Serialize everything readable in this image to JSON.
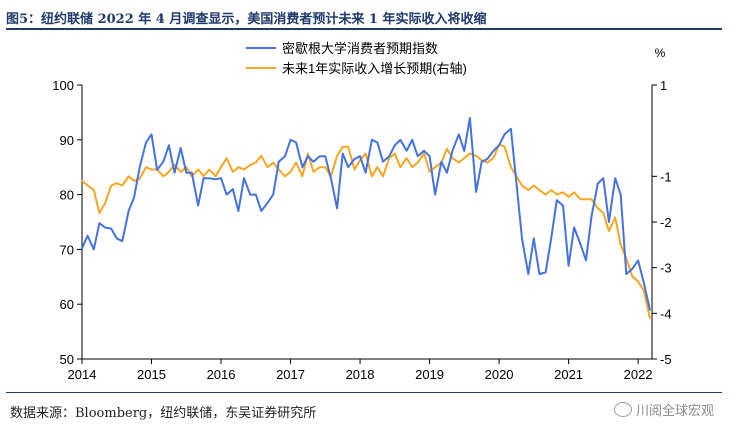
{
  "title": "图5：纽约联储 2022 年 4 月调查显示，美国消费者预计未来 1 年实际收入将收缩",
  "source": "数据来源：Bloomberg，纽约联储，东吴证券研究所",
  "watermark": "川阅全球宏观",
  "watermark_icon": "wechat-icon",
  "colors": {
    "series1": "#4472e0",
    "series2": "#f5a623",
    "title": "#1f3a6b"
  },
  "chart_data": {
    "type": "line",
    "legend_position": "top",
    "grid": false,
    "x_tick_labels": [
      "2014",
      "2015",
      "2016",
      "2017",
      "2018",
      "2019",
      "2020",
      "2021",
      "2022"
    ],
    "xlim": [
      2014.0,
      2022.2
    ],
    "y_left": {
      "lim": [
        50,
        100
      ],
      "ticks": [
        100,
        90,
        80,
        70,
        60,
        50
      ]
    },
    "y_right": {
      "unit": "%",
      "lim": [
        -5,
        1
      ],
      "ticks": [
        1,
        -1,
        -2,
        -3,
        -4,
        -5
      ]
    },
    "series": [
      {
        "name": "密歇根大学消费者预期指数",
        "axis": "left",
        "points": [
          [
            2014.0,
            70.2
          ],
          [
            2014.08,
            72.5
          ],
          [
            2014.17,
            70.0
          ],
          [
            2014.25,
            74.8
          ],
          [
            2014.33,
            74.0
          ],
          [
            2014.42,
            73.8
          ],
          [
            2014.5,
            72.0
          ],
          [
            2014.58,
            71.5
          ],
          [
            2014.67,
            77.0
          ],
          [
            2014.75,
            79.5
          ],
          [
            2014.83,
            85.0
          ],
          [
            2014.92,
            89.5
          ],
          [
            2015.0,
            91.0
          ],
          [
            2015.08,
            84.5
          ],
          [
            2015.17,
            86.0
          ],
          [
            2015.25,
            89.0
          ],
          [
            2015.33,
            84.0
          ],
          [
            2015.42,
            88.5
          ],
          [
            2015.5,
            84.0
          ],
          [
            2015.58,
            84.0
          ],
          [
            2015.67,
            78.0
          ],
          [
            2015.75,
            83.0
          ],
          [
            2015.83,
            83.0
          ],
          [
            2015.92,
            82.8
          ],
          [
            2016.0,
            83.0
          ],
          [
            2016.08,
            80.0
          ],
          [
            2016.17,
            81.0
          ],
          [
            2016.25,
            77.0
          ],
          [
            2016.33,
            83.0
          ],
          [
            2016.42,
            80.0
          ],
          [
            2016.5,
            80.0
          ],
          [
            2016.58,
            77.0
          ],
          [
            2016.67,
            78.5
          ],
          [
            2016.75,
            80.0
          ],
          [
            2016.83,
            86.0
          ],
          [
            2016.92,
            87.0
          ],
          [
            2017.0,
            90.0
          ],
          [
            2017.08,
            89.5
          ],
          [
            2017.17,
            85.0
          ],
          [
            2017.25,
            87.0
          ],
          [
            2017.33,
            86.0
          ],
          [
            2017.42,
            87.0
          ],
          [
            2017.5,
            87.0
          ],
          [
            2017.58,
            83.0
          ],
          [
            2017.67,
            77.5
          ],
          [
            2017.75,
            87.5
          ],
          [
            2017.83,
            85.0
          ],
          [
            2017.92,
            86.5
          ],
          [
            2018.0,
            87.0
          ],
          [
            2018.08,
            84.0
          ],
          [
            2018.17,
            90.0
          ],
          [
            2018.25,
            89.5
          ],
          [
            2018.33,
            86.0
          ],
          [
            2018.42,
            87.0
          ],
          [
            2018.5,
            89.0
          ],
          [
            2018.58,
            90.0
          ],
          [
            2018.67,
            88.0
          ],
          [
            2018.75,
            90.0
          ],
          [
            2018.83,
            87.0
          ],
          [
            2018.92,
            88.0
          ],
          [
            2019.0,
            87.0
          ],
          [
            2019.08,
            80.0
          ],
          [
            2019.17,
            86.0
          ],
          [
            2019.25,
            84.0
          ],
          [
            2019.33,
            88.0
          ],
          [
            2019.42,
            91.0
          ],
          [
            2019.5,
            88.0
          ],
          [
            2019.58,
            94.0
          ],
          [
            2019.67,
            80.5
          ],
          [
            2019.75,
            86.0
          ],
          [
            2019.83,
            86.5
          ],
          [
            2019.92,
            88.0
          ],
          [
            2020.0,
            89.0
          ],
          [
            2020.08,
            91.0
          ],
          [
            2020.17,
            92.0
          ],
          [
            2020.25,
            82.0
          ],
          [
            2020.33,
            72.0
          ],
          [
            2020.42,
            65.5
          ],
          [
            2020.5,
            72.0
          ],
          [
            2020.58,
            65.5
          ],
          [
            2020.67,
            65.8
          ],
          [
            2020.75,
            72.0
          ],
          [
            2020.83,
            79.0
          ],
          [
            2020.92,
            78.0
          ],
          [
            2021.0,
            67.0
          ],
          [
            2021.08,
            74.0
          ],
          [
            2021.17,
            71.0
          ],
          [
            2021.25,
            68.0
          ],
          [
            2021.33,
            76.0
          ],
          [
            2021.42,
            82.0
          ],
          [
            2021.5,
            83.0
          ],
          [
            2021.58,
            75.0
          ],
          [
            2021.67,
            83.0
          ],
          [
            2021.75,
            80.0
          ],
          [
            2021.83,
            65.5
          ],
          [
            2021.92,
            66.5
          ],
          [
            2022.0,
            68.0
          ],
          [
            2022.08,
            64.0
          ],
          [
            2022.17,
            59.0
          ]
        ]
      },
      {
        "name": "未来1年实际收入增长预期(右轴)",
        "axis": "right",
        "points": [
          [
            2014.0,
            -1.1
          ],
          [
            2014.08,
            -1.2
          ],
          [
            2014.17,
            -1.3
          ],
          [
            2014.25,
            -1.8
          ],
          [
            2014.33,
            -1.6
          ],
          [
            2014.42,
            -1.2
          ],
          [
            2014.5,
            -1.15
          ],
          [
            2014.58,
            -1.2
          ],
          [
            2014.67,
            -1.0
          ],
          [
            2014.75,
            -1.1
          ],
          [
            2014.83,
            -1.05
          ],
          [
            2014.92,
            -0.8
          ],
          [
            2015.0,
            -0.85
          ],
          [
            2015.08,
            -0.85
          ],
          [
            2015.17,
            -1.0
          ],
          [
            2015.25,
            -0.9
          ],
          [
            2015.33,
            -0.75
          ],
          [
            2015.42,
            -0.9
          ],
          [
            2015.5,
            -0.8
          ],
          [
            2015.58,
            -1.0
          ],
          [
            2015.67,
            -0.85
          ],
          [
            2015.75,
            -1.0
          ],
          [
            2015.83,
            -0.85
          ],
          [
            2015.92,
            -1.0
          ],
          [
            2016.0,
            -0.8
          ],
          [
            2016.08,
            -0.6
          ],
          [
            2016.17,
            -0.9
          ],
          [
            2016.25,
            -0.8
          ],
          [
            2016.33,
            -0.85
          ],
          [
            2016.42,
            -0.75
          ],
          [
            2016.5,
            -0.7
          ],
          [
            2016.58,
            -0.55
          ],
          [
            2016.67,
            -0.8
          ],
          [
            2016.75,
            -0.7
          ],
          [
            2016.83,
            -0.85
          ],
          [
            2016.92,
            -1.0
          ],
          [
            2017.0,
            -0.9
          ],
          [
            2017.08,
            -0.7
          ],
          [
            2017.17,
            -1.0
          ],
          [
            2017.25,
            -0.5
          ],
          [
            2017.33,
            -0.9
          ],
          [
            2017.42,
            -0.8
          ],
          [
            2017.5,
            -0.8
          ],
          [
            2017.58,
            -1.0
          ],
          [
            2017.67,
            -0.55
          ],
          [
            2017.75,
            -0.35
          ],
          [
            2017.83,
            -0.35
          ],
          [
            2017.92,
            -0.85
          ],
          [
            2018.0,
            -0.65
          ],
          [
            2018.08,
            -0.5
          ],
          [
            2018.17,
            -1.0
          ],
          [
            2018.25,
            -0.8
          ],
          [
            2018.33,
            -1.0
          ],
          [
            2018.42,
            -0.6
          ],
          [
            2018.5,
            -0.5
          ],
          [
            2018.58,
            -0.8
          ],
          [
            2018.67,
            -0.6
          ],
          [
            2018.75,
            -0.8
          ],
          [
            2018.83,
            -0.7
          ],
          [
            2018.92,
            -0.5
          ],
          [
            2019.0,
            -0.9
          ],
          [
            2019.08,
            -0.8
          ],
          [
            2019.17,
            -0.7
          ],
          [
            2019.25,
            -0.4
          ],
          [
            2019.33,
            -0.6
          ],
          [
            2019.42,
            -0.7
          ],
          [
            2019.5,
            -0.6
          ],
          [
            2019.58,
            -0.5
          ],
          [
            2019.67,
            -0.55
          ],
          [
            2019.75,
            -0.65
          ],
          [
            2019.83,
            -0.7
          ],
          [
            2019.92,
            -0.6
          ],
          [
            2020.0,
            -0.3
          ],
          [
            2020.08,
            -0.35
          ],
          [
            2020.17,
            -0.8
          ],
          [
            2020.25,
            -1.0
          ],
          [
            2020.33,
            -1.2
          ],
          [
            2020.42,
            -1.3
          ],
          [
            2020.5,
            -1.2
          ],
          [
            2020.58,
            -1.3
          ],
          [
            2020.67,
            -1.4
          ],
          [
            2020.75,
            -1.3
          ],
          [
            2020.83,
            -1.4
          ],
          [
            2020.92,
            -1.35
          ],
          [
            2021.0,
            -1.45
          ],
          [
            2021.08,
            -1.35
          ],
          [
            2021.17,
            -1.5
          ],
          [
            2021.25,
            -1.5
          ],
          [
            2021.33,
            -1.5
          ],
          [
            2021.42,
            -1.7
          ],
          [
            2021.5,
            -1.8
          ],
          [
            2021.58,
            -2.2
          ],
          [
            2021.67,
            -1.9
          ],
          [
            2021.75,
            -2.5
          ],
          [
            2021.83,
            -2.8
          ],
          [
            2021.92,
            -3.2
          ],
          [
            2022.0,
            -3.3
          ],
          [
            2022.08,
            -3.5
          ],
          [
            2022.17,
            -4.1
          ]
        ]
      }
    ]
  }
}
